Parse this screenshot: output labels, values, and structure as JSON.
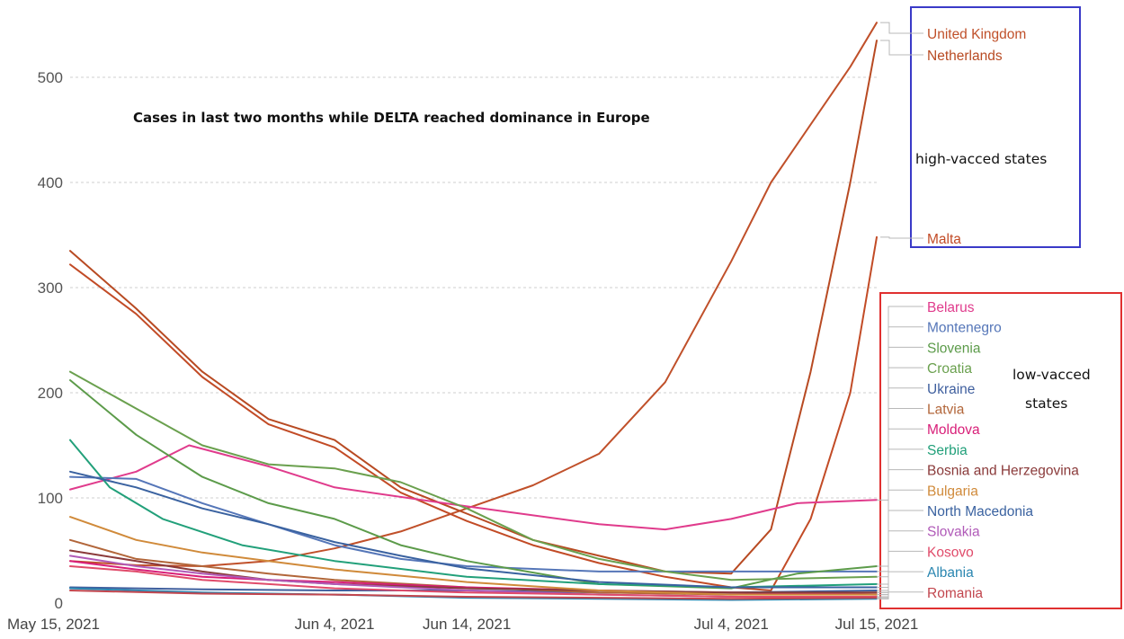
{
  "chart_data": {
    "type": "line",
    "title": "",
    "annotation": "Cases in last two months while DELTA reached dominance in Europe",
    "xlabel": "",
    "ylabel": "",
    "x_ticks": [
      "May 15, 2021",
      "Jun 4, 2021",
      "Jun 14, 2021",
      "Jul 4, 2021",
      "Jul 15, 2021"
    ],
    "x_range": [
      "2021-05-15",
      "2021-07-15"
    ],
    "y_ticks": [
      0,
      100,
      200,
      300,
      400,
      500
    ],
    "ylim": [
      0,
      560
    ],
    "grid": "horizontal-dashed",
    "legend": "right, labels at line ends",
    "groups": [
      {
        "label": "high-vacced states",
        "box_color": "#3a3ac8",
        "members": [
          "United Kingdom",
          "Netherlands",
          "Malta"
        ]
      },
      {
        "label_lines": [
          "low-vacced",
          "states"
        ],
        "box_color": "#e03030",
        "members": [
          "Belarus",
          "Montenegro",
          "Slovenia",
          "Croatia",
          "Ukraine",
          "Latvia",
          "Moldova",
          "Serbia",
          "Bosnia and Herzegovina",
          "Bulgaria",
          "North Macedonia",
          "Slovakia",
          "Kosovo",
          "Albania",
          "Romania"
        ]
      }
    ],
    "series": [
      {
        "name": "United Kingdom",
        "color": "#c0502a",
        "points": [
          [
            "2021-05-15",
            40
          ],
          [
            "2021-05-20",
            36
          ],
          [
            "2021-05-25",
            35
          ],
          [
            "2021-05-30",
            40
          ],
          [
            "2021-06-04",
            52
          ],
          [
            "2021-06-09",
            68
          ],
          [
            "2021-06-14",
            90
          ],
          [
            "2021-06-19",
            112
          ],
          [
            "2021-06-24",
            142
          ],
          [
            "2021-06-29",
            210
          ],
          [
            "2021-07-04",
            325
          ],
          [
            "2021-07-07",
            400
          ],
          [
            "2021-07-10",
            455
          ],
          [
            "2021-07-13",
            510
          ],
          [
            "2021-07-15",
            552
          ]
        ]
      },
      {
        "name": "Netherlands",
        "color": "#b84a22",
        "points": [
          [
            "2021-05-15",
            335
          ],
          [
            "2021-05-20",
            280
          ],
          [
            "2021-05-25",
            220
          ],
          [
            "2021-05-30",
            175
          ],
          [
            "2021-06-04",
            155
          ],
          [
            "2021-06-09",
            110
          ],
          [
            "2021-06-14",
            85
          ],
          [
            "2021-06-19",
            60
          ],
          [
            "2021-06-24",
            45
          ],
          [
            "2021-06-29",
            30
          ],
          [
            "2021-07-04",
            28
          ],
          [
            "2021-07-07",
            70
          ],
          [
            "2021-07-10",
            220
          ],
          [
            "2021-07-13",
            400
          ],
          [
            "2021-07-15",
            535
          ]
        ]
      },
      {
        "name": "Malta",
        "color": "#c24b26",
        "points": [
          [
            "2021-05-15",
            322
          ],
          [
            "2021-05-20",
            275
          ],
          [
            "2021-05-25",
            215
          ],
          [
            "2021-05-30",
            170
          ],
          [
            "2021-06-04",
            148
          ],
          [
            "2021-06-09",
            105
          ],
          [
            "2021-06-14",
            78
          ],
          [
            "2021-06-19",
            55
          ],
          [
            "2021-06-24",
            38
          ],
          [
            "2021-06-29",
            25
          ],
          [
            "2021-07-04",
            15
          ],
          [
            "2021-07-07",
            12
          ],
          [
            "2021-07-10",
            80
          ],
          [
            "2021-07-13",
            200
          ],
          [
            "2021-07-15",
            348
          ]
        ]
      },
      {
        "name": "Belarus",
        "color": "#e03b8c",
        "points": [
          [
            "2021-05-15",
            108
          ],
          [
            "2021-05-20",
            125
          ],
          [
            "2021-05-24",
            150
          ],
          [
            "2021-05-30",
            130
          ],
          [
            "2021-06-04",
            110
          ],
          [
            "2021-06-14",
            92
          ],
          [
            "2021-06-24",
            75
          ],
          [
            "2021-06-29",
            70
          ],
          [
            "2021-07-04",
            80
          ],
          [
            "2021-07-09",
            95
          ],
          [
            "2021-07-15",
            98
          ]
        ]
      },
      {
        "name": "Montenegro",
        "color": "#5576b8",
        "points": [
          [
            "2021-05-15",
            120
          ],
          [
            "2021-05-20",
            118
          ],
          [
            "2021-05-25",
            95
          ],
          [
            "2021-05-30",
            75
          ],
          [
            "2021-06-04",
            55
          ],
          [
            "2021-06-09",
            42
          ],
          [
            "2021-06-14",
            35
          ],
          [
            "2021-06-24",
            30
          ],
          [
            "2021-07-04",
            30
          ],
          [
            "2021-07-15",
            30
          ]
        ]
      },
      {
        "name": "Slovenia",
        "color": "#5c9b4a",
        "points": [
          [
            "2021-05-15",
            212
          ],
          [
            "2021-05-20",
            160
          ],
          [
            "2021-05-25",
            120
          ],
          [
            "2021-05-30",
            95
          ],
          [
            "2021-06-04",
            80
          ],
          [
            "2021-06-09",
            55
          ],
          [
            "2021-06-14",
            40
          ],
          [
            "2021-06-24",
            18
          ],
          [
            "2021-07-04",
            14
          ],
          [
            "2021-07-09",
            28
          ],
          [
            "2021-07-15",
            35
          ]
        ]
      },
      {
        "name": "Croatia",
        "color": "#6aa04e",
        "points": [
          [
            "2021-05-15",
            220
          ],
          [
            "2021-05-20",
            185
          ],
          [
            "2021-05-25",
            150
          ],
          [
            "2021-05-30",
            132
          ],
          [
            "2021-06-04",
            128
          ],
          [
            "2021-06-09",
            115
          ],
          [
            "2021-06-14",
            90
          ],
          [
            "2021-06-19",
            60
          ],
          [
            "2021-06-24",
            42
          ],
          [
            "2021-06-29",
            30
          ],
          [
            "2021-07-04",
            22
          ],
          [
            "2021-07-15",
            25
          ]
        ]
      },
      {
        "name": "Ukraine",
        "color": "#3f5f9e",
        "points": [
          [
            "2021-05-15",
            15
          ],
          [
            "2021-05-25",
            13
          ],
          [
            "2021-06-04",
            12
          ],
          [
            "2021-06-14",
            12
          ],
          [
            "2021-06-24",
            10
          ],
          [
            "2021-07-04",
            10
          ],
          [
            "2021-07-15",
            12
          ]
        ]
      },
      {
        "name": "Latvia",
        "color": "#b2663a",
        "points": [
          [
            "2021-05-15",
            60
          ],
          [
            "2021-05-20",
            42
          ],
          [
            "2021-05-25",
            35
          ],
          [
            "2021-05-30",
            28
          ],
          [
            "2021-06-04",
            22
          ],
          [
            "2021-06-14",
            15
          ],
          [
            "2021-06-24",
            10
          ],
          [
            "2021-07-04",
            8
          ],
          [
            "2021-07-15",
            10
          ]
        ]
      },
      {
        "name": "Moldova",
        "color": "#d81e78",
        "points": [
          [
            "2021-05-15",
            40
          ],
          [
            "2021-05-20",
            32
          ],
          [
            "2021-05-25",
            25
          ],
          [
            "2021-05-30",
            22
          ],
          [
            "2021-06-04",
            20
          ],
          [
            "2021-06-14",
            15
          ],
          [
            "2021-06-24",
            12
          ],
          [
            "2021-07-04",
            10
          ],
          [
            "2021-07-15",
            8
          ]
        ]
      },
      {
        "name": "Serbia",
        "color": "#22a07a",
        "points": [
          [
            "2021-05-15",
            155
          ],
          [
            "2021-05-18",
            110
          ],
          [
            "2021-05-22",
            80
          ],
          [
            "2021-05-28",
            55
          ],
          [
            "2021-06-04",
            40
          ],
          [
            "2021-06-14",
            25
          ],
          [
            "2021-06-24",
            18
          ],
          [
            "2021-07-04",
            15
          ],
          [
            "2021-07-15",
            18
          ]
        ]
      },
      {
        "name": "Bosnia and Herzegovina",
        "color": "#8a3a3a",
        "points": [
          [
            "2021-05-15",
            50
          ],
          [
            "2021-05-20",
            40
          ],
          [
            "2021-05-25",
            30
          ],
          [
            "2021-05-30",
            22
          ],
          [
            "2021-06-04",
            18
          ],
          [
            "2021-06-14",
            14
          ],
          [
            "2021-06-24",
            12
          ],
          [
            "2021-07-04",
            10
          ],
          [
            "2021-07-15",
            10
          ]
        ]
      },
      {
        "name": "Bulgaria",
        "color": "#d08a3a",
        "points": [
          [
            "2021-05-15",
            82
          ],
          [
            "2021-05-20",
            60
          ],
          [
            "2021-05-25",
            48
          ],
          [
            "2021-05-30",
            40
          ],
          [
            "2021-06-04",
            32
          ],
          [
            "2021-06-14",
            20
          ],
          [
            "2021-06-24",
            12
          ],
          [
            "2021-07-04",
            8
          ],
          [
            "2021-07-15",
            8
          ]
        ]
      },
      {
        "name": "North Macedonia",
        "color": "#3a62a0",
        "points": [
          [
            "2021-05-15",
            125
          ],
          [
            "2021-05-20",
            110
          ],
          [
            "2021-05-25",
            90
          ],
          [
            "2021-05-30",
            75
          ],
          [
            "2021-06-04",
            58
          ],
          [
            "2021-06-09",
            45
          ],
          [
            "2021-06-14",
            33
          ],
          [
            "2021-06-24",
            20
          ],
          [
            "2021-07-04",
            15
          ],
          [
            "2021-07-15",
            15
          ]
        ]
      },
      {
        "name": "Slovakia",
        "color": "#b05ab8",
        "points": [
          [
            "2021-05-15",
            45
          ],
          [
            "2021-05-20",
            35
          ],
          [
            "2021-05-25",
            28
          ],
          [
            "2021-05-30",
            22
          ],
          [
            "2021-06-04",
            18
          ],
          [
            "2021-06-14",
            12
          ],
          [
            "2021-06-24",
            8
          ],
          [
            "2021-07-04",
            6
          ],
          [
            "2021-07-15",
            6
          ]
        ]
      },
      {
        "name": "Kosovo",
        "color": "#e04b6a",
        "points": [
          [
            "2021-05-15",
            35
          ],
          [
            "2021-05-20",
            30
          ],
          [
            "2021-05-25",
            22
          ],
          [
            "2021-05-30",
            18
          ],
          [
            "2021-06-04",
            14
          ],
          [
            "2021-06-14",
            10
          ],
          [
            "2021-06-24",
            8
          ],
          [
            "2021-07-04",
            6
          ],
          [
            "2021-07-15",
            6
          ]
        ]
      },
      {
        "name": "Albania",
        "color": "#2a86b0",
        "points": [
          [
            "2021-05-15",
            14
          ],
          [
            "2021-05-25",
            10
          ],
          [
            "2021-06-04",
            8
          ],
          [
            "2021-06-14",
            5
          ],
          [
            "2021-06-24",
            4
          ],
          [
            "2021-07-04",
            3
          ],
          [
            "2021-07-15",
            4
          ]
        ]
      },
      {
        "name": "Romania",
        "color": "#c2464e",
        "points": [
          [
            "2021-05-15",
            12
          ],
          [
            "2021-05-25",
            9
          ],
          [
            "2021-06-04",
            8
          ],
          [
            "2021-06-14",
            6
          ],
          [
            "2021-06-24",
            5
          ],
          [
            "2021-07-04",
            4
          ],
          [
            "2021-07-15",
            5
          ]
        ]
      }
    ]
  }
}
